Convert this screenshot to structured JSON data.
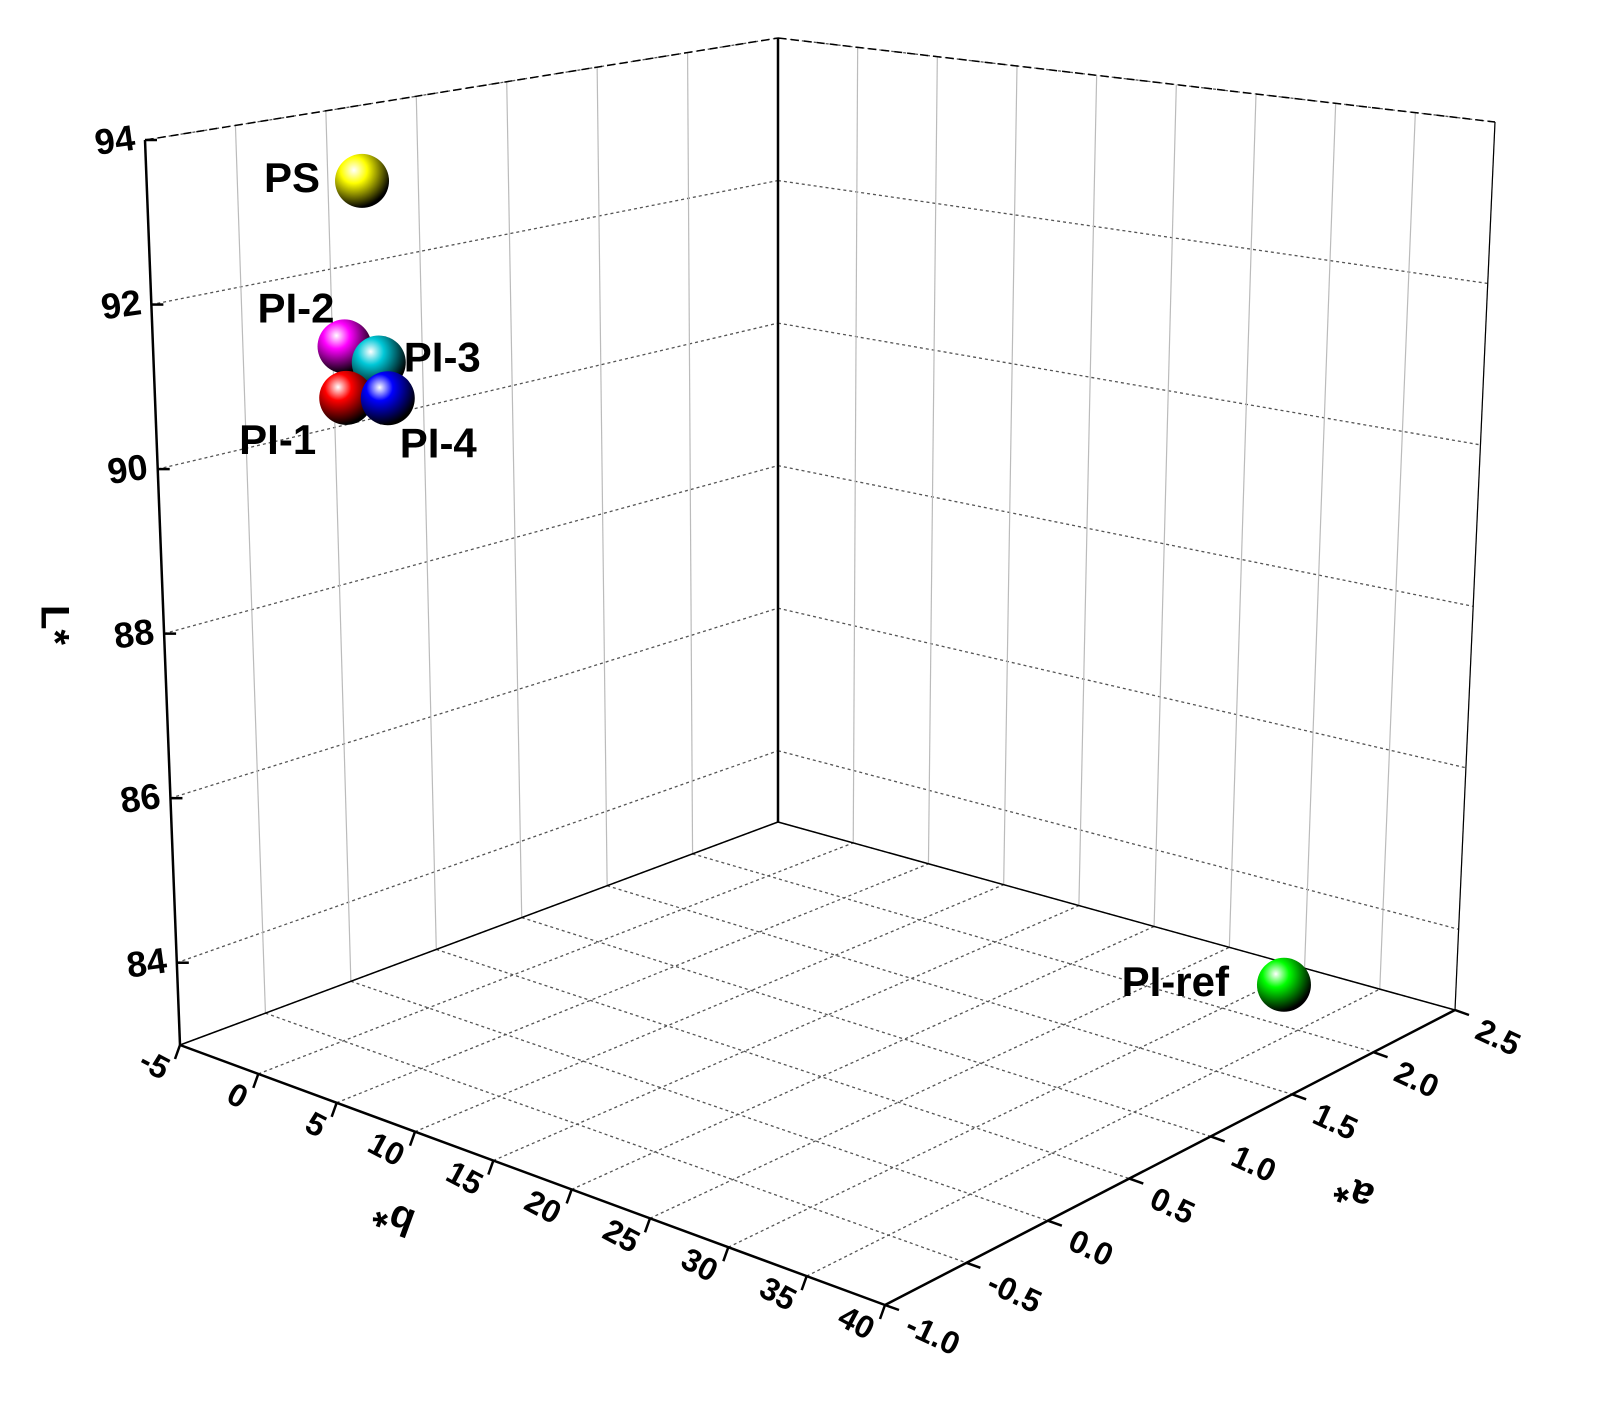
{
  "chart_data": {
    "type": "scatter3d",
    "x_label": "b*",
    "y_label": "a*",
    "z_label": "L*",
    "xlim": [
      -5,
      40
    ],
    "xticks": [
      -5,
      0,
      5,
      10,
      15,
      20,
      25,
      30,
      35,
      40
    ],
    "ylim": [
      -1,
      2.5
    ],
    "yticks": [
      {
        "value": -1,
        "label": "-1.0"
      },
      -0.5,
      {
        "value": 0,
        "label": "0.0"
      },
      0.5,
      {
        "value": 1,
        "label": "1.0"
      },
      1.5,
      {
        "value": 2,
        "label": "2.0"
      },
      2.5
    ],
    "zlim": [
      83,
      94
    ],
    "zticks": [
      84,
      86,
      88,
      90,
      92,
      94
    ],
    "grid": true,
    "series": [
      {
        "name": "PS",
        "color": "#ffff00",
        "x": [
          6.3
        ],
        "y": [
          -0.8
        ],
        "z": [
          93.7
        ]
      },
      {
        "name": "PI-2",
        "color": "#ff00ff",
        "x": [
          6
        ],
        "y": [
          -0.9
        ],
        "z": [
          91.8
        ]
      },
      {
        "name": "PI-3",
        "color": "#00c8d8",
        "x": [
          7
        ],
        "y": [
          -0.8
        ],
        "z": [
          91.6
        ]
      },
      {
        "name": "PI-1",
        "color": "#ff0000",
        "x": [
          6
        ],
        "y": [
          -0.9
        ],
        "z": [
          91.2
        ]
      },
      {
        "name": "PI-4",
        "color": "#0000ff",
        "x": [
          7.5
        ],
        "y": [
          -0.8
        ],
        "z": [
          91.2
        ]
      },
      {
        "name": "PI-ref",
        "color": "#00ff00",
        "x": [
          34
        ],
        "y": [
          2
        ],
        "z": [
          83.5
        ]
      }
    ]
  }
}
